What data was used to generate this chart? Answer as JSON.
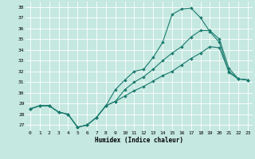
{
  "bg_color": "#c5e8e0",
  "grid_color": "#ffffff",
  "line_color": "#1a7a6e",
  "xlabel": "Humidex (Indice chaleur)",
  "xlim": [
    -0.5,
    23.5
  ],
  "ylim": [
    26.5,
    38.5
  ],
  "x_ticks": [
    0,
    1,
    2,
    3,
    4,
    5,
    6,
    7,
    8,
    9,
    10,
    11,
    12,
    13,
    14,
    15,
    16,
    17,
    18,
    19,
    20,
    21,
    22,
    23
  ],
  "y_ticks": [
    27,
    28,
    29,
    30,
    31,
    32,
    33,
    34,
    35,
    36,
    37,
    38
  ],
  "line1_y": [
    28.5,
    28.8,
    28.8,
    28.2,
    28.0,
    26.8,
    27.0,
    27.7,
    28.8,
    30.3,
    31.2,
    32.0,
    32.2,
    33.3,
    34.7,
    37.3,
    37.8,
    37.9,
    37.0,
    35.7,
    34.7,
    31.9,
    31.3,
    31.2
  ],
  "line2_y": [
    28.5,
    28.8,
    28.8,
    28.2,
    28.0,
    26.8,
    27.0,
    27.7,
    28.8,
    29.2,
    30.3,
    31.0,
    31.5,
    32.2,
    33.0,
    33.7,
    34.3,
    35.2,
    35.8,
    35.8,
    35.0,
    32.3,
    31.3,
    31.2
  ],
  "line3_y": [
    28.5,
    28.8,
    28.8,
    28.2,
    28.0,
    26.8,
    27.0,
    27.7,
    28.8,
    29.2,
    29.7,
    30.2,
    30.6,
    31.1,
    31.6,
    32.0,
    32.6,
    33.2,
    33.7,
    34.3,
    34.2,
    32.0,
    31.3,
    31.2
  ]
}
